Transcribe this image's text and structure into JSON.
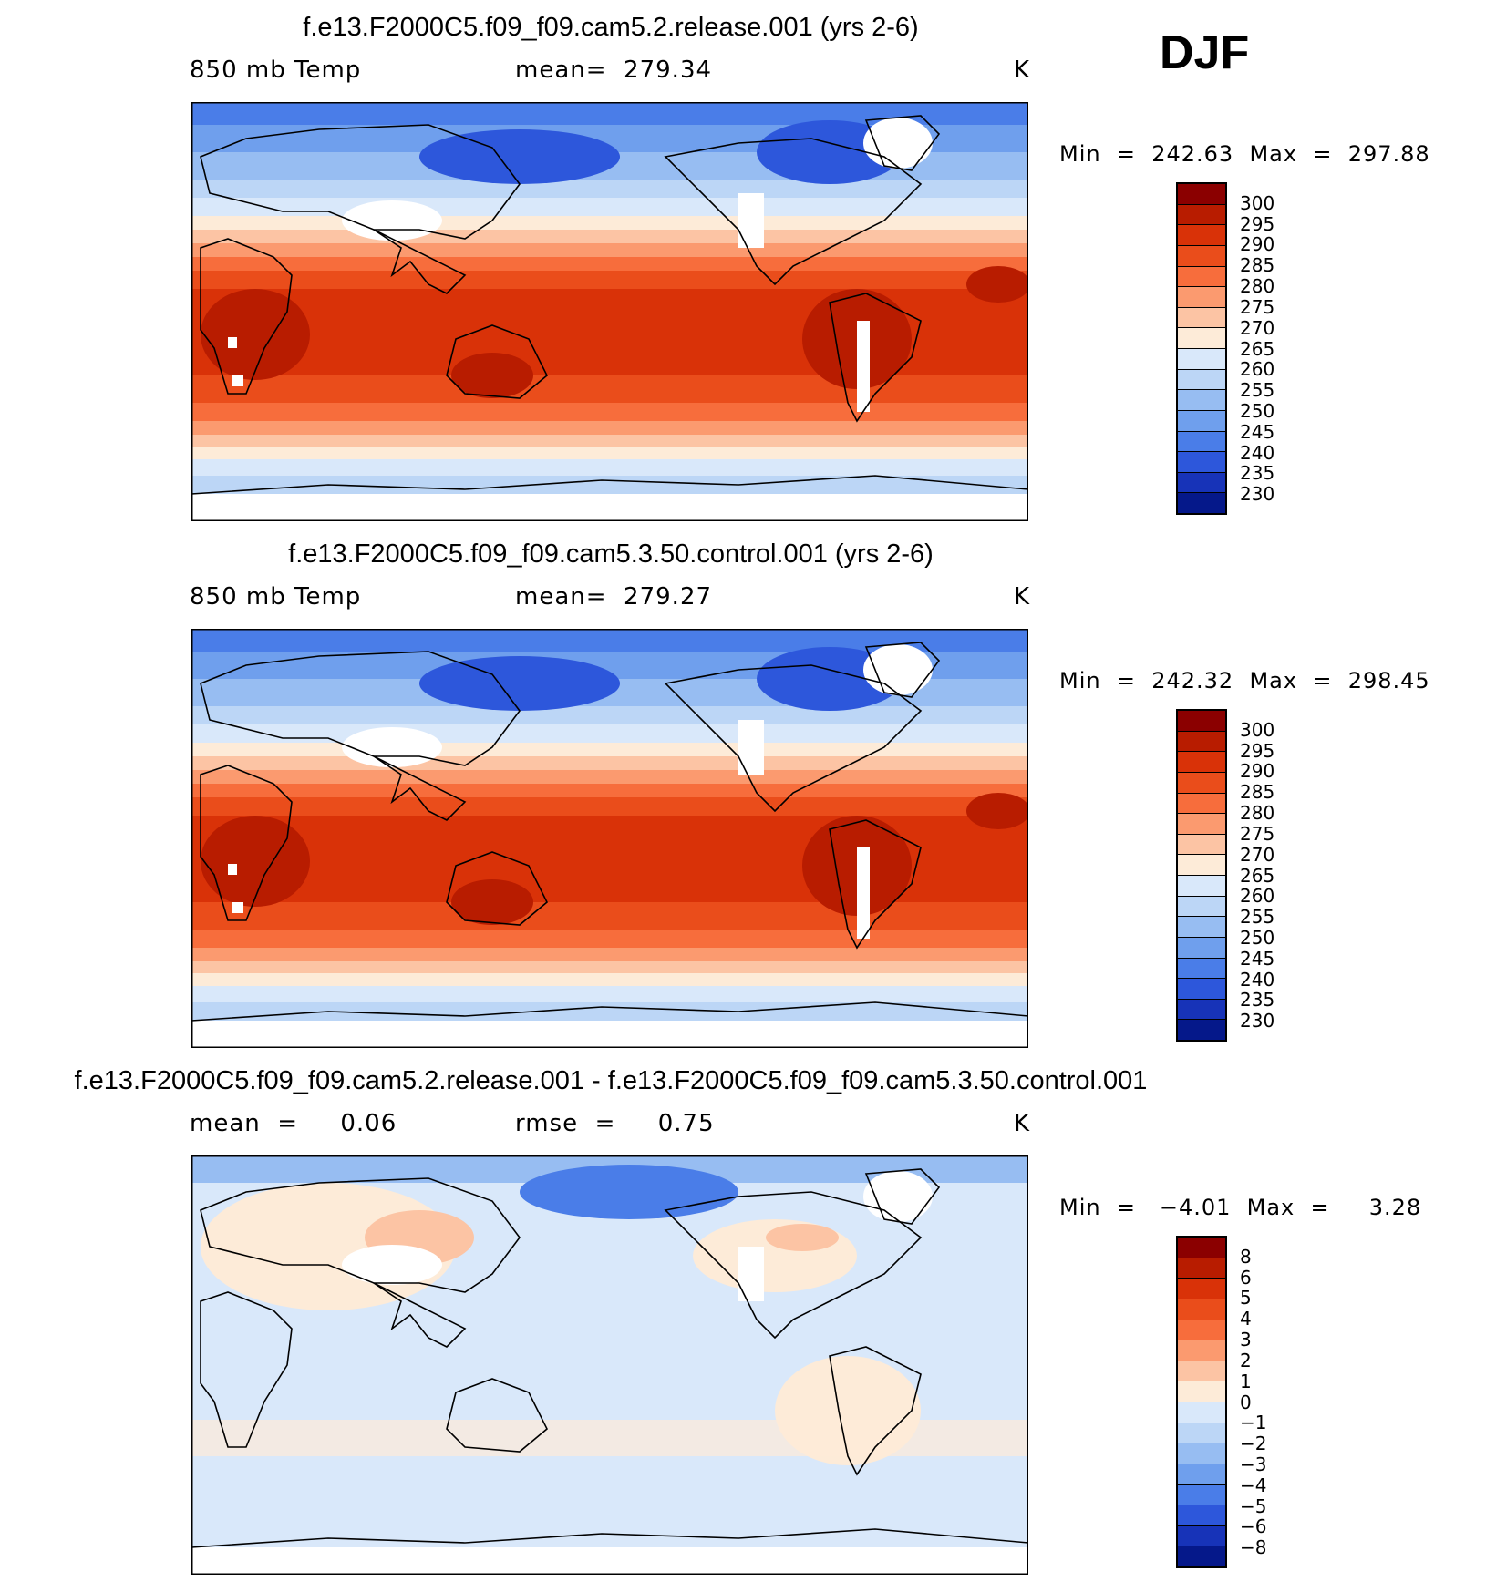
{
  "season": "DJF",
  "panels": [
    {
      "title": "f.e13.F2000C5.f09_f09.cam5.2.release.001 (yrs 2-6)",
      "variable": "850 mb Temp",
      "stat": "mean=  279.34",
      "units": "K",
      "minmax": "Min  =  242.63  Max  =  297.88",
      "scale": "abs",
      "colorbar": {
        "labels": [
          "300",
          "295",
          "290",
          "285",
          "280",
          "275",
          "270",
          "265",
          "260",
          "255",
          "250",
          "245",
          "240",
          "235",
          "230"
        ],
        "colors": [
          "#8b0000",
          "#b81c00",
          "#d93208",
          "#ea4d1b",
          "#f76d3c",
          "#fb9a6f",
          "#fcc4a4",
          "#fdebd8",
          "#d9e8fa",
          "#bcd6f6",
          "#97bdf2",
          "#6f9fed",
          "#4a7de8",
          "#2d57db",
          "#1733b8",
          "#05188a"
        ]
      }
    },
    {
      "title": "f.e13.F2000C5.f09_f09.cam5.3.50.control.001 (yrs 2-6)",
      "variable": "850 mb Temp",
      "stat": "mean=  279.27",
      "units": "K",
      "minmax": "Min  =  242.32  Max  =  298.45",
      "scale": "abs",
      "colorbar": {
        "labels": [
          "300",
          "295",
          "290",
          "285",
          "280",
          "275",
          "270",
          "265",
          "260",
          "255",
          "250",
          "245",
          "240",
          "235",
          "230"
        ],
        "colors": [
          "#8b0000",
          "#b81c00",
          "#d93208",
          "#ea4d1b",
          "#f76d3c",
          "#fb9a6f",
          "#fcc4a4",
          "#fdebd8",
          "#d9e8fa",
          "#bcd6f6",
          "#97bdf2",
          "#6f9fed",
          "#4a7de8",
          "#2d57db",
          "#1733b8",
          "#05188a"
        ]
      }
    },
    {
      "title": "f.e13.F2000C5.f09_f09.cam5.2.release.001 - f.e13.F2000C5.f09_f09.cam5.3.50.control.001",
      "variable": "mean  =     0.06",
      "stat": "rmse  =     0.75",
      "units": "K",
      "minmax": "Min  =   −4.01  Max  =     3.28",
      "scale": "diff",
      "colorbar": {
        "labels": [
          "8",
          "6",
          "5",
          "4",
          "3",
          "2",
          "1",
          "0",
          "−1",
          "−2",
          "−3",
          "−4",
          "−5",
          "−6",
          "−8"
        ],
        "colors": [
          "#8b0000",
          "#b81c00",
          "#d93208",
          "#ea4d1b",
          "#f76d3c",
          "#fb9a6f",
          "#fcc4a4",
          "#fdebd8",
          "#d9e8fa",
          "#bcd6f6",
          "#97bdf2",
          "#6f9fed",
          "#4a7de8",
          "#2d57db",
          "#1733b8",
          "#05188a"
        ]
      }
    }
  ]
}
